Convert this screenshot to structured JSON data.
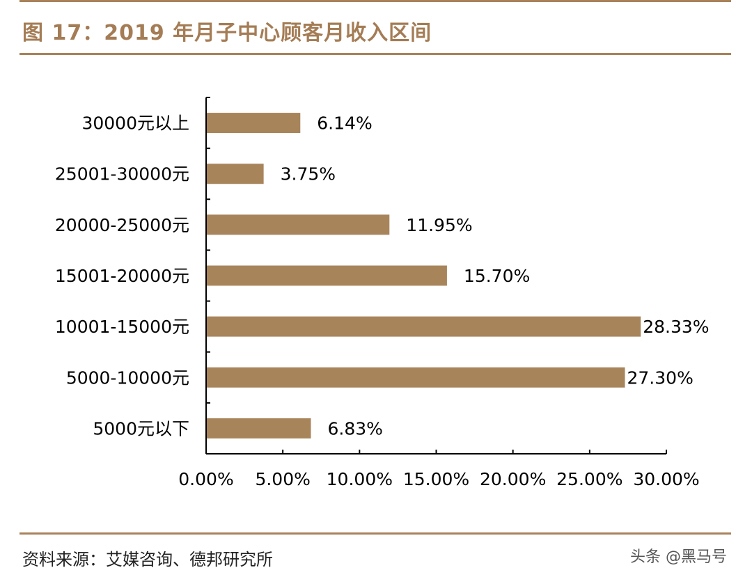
{
  "title": "图 17：2019 年月子中心顾客月收入区间",
  "source": "资料来源：艾媒咨询、德邦研究所",
  "watermark": "头条 @黑马号",
  "colors": {
    "bar": "#a8845b",
    "accent": "#a47c55",
    "rule": "#a8825a",
    "axis": "#000000"
  },
  "chart_data": {
    "type": "bar",
    "orientation": "horizontal",
    "categories": [
      "30000元以上",
      "25001-30000元",
      "20000-25000元",
      "15001-20000元",
      "10001-15000元",
      "5000-10000元",
      "5000元以下"
    ],
    "values": [
      6.14,
      3.75,
      11.95,
      15.7,
      28.33,
      27.3,
      6.83
    ],
    "value_labels": [
      "6.14%",
      "3.75%",
      "11.95%",
      "15.70%",
      "28.33%",
      "27.30%",
      "6.83%"
    ],
    "xlim": [
      0,
      30
    ],
    "xticks": [
      0,
      5,
      10,
      15,
      20,
      25,
      30
    ],
    "xtick_labels": [
      "0.00%",
      "5.00%",
      "10.00%",
      "15.00%",
      "20.00%",
      "25.00%",
      "30.00%"
    ],
    "grid": false,
    "legend": "none"
  }
}
